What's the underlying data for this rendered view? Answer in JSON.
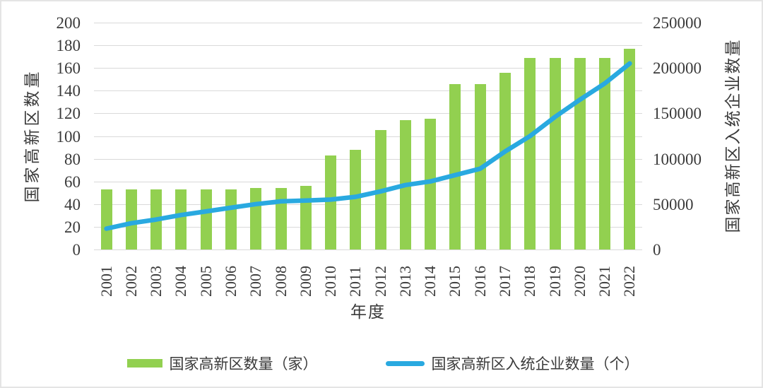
{
  "chart_data": {
    "type": "bar",
    "title": "",
    "categories": [
      "2001",
      "2002",
      "2003",
      "2004",
      "2005",
      "2006",
      "2007",
      "2008",
      "2009",
      "2010",
      "2011",
      "2012",
      "2013",
      "2014",
      "2015",
      "2016",
      "2017",
      "2018",
      "2019",
      "2020",
      "2021",
      "2022"
    ],
    "series": [
      {
        "name": "国家高新区数量（家）",
        "render": "bar",
        "axis": "left",
        "values": [
          53,
          53,
          53,
          53,
          53,
          53,
          54,
          54,
          56,
          83,
          88,
          105,
          114,
          115,
          146,
          146,
          156,
          169,
          169,
          169,
          169,
          177
        ]
      },
      {
        "name": "国家高新区入统企业数量（个）",
        "render": "line",
        "axis": "right",
        "values": [
          23000,
          29000,
          33000,
          38000,
          42000,
          46000,
          50000,
          53000,
          54000,
          55000,
          58000,
          64000,
          71000,
          75000,
          82000,
          89000,
          108000,
          125000,
          146000,
          165000,
          183000,
          205000
        ]
      }
    ],
    "xlabel": "年度",
    "ylabel_left": "国家高新区数量",
    "ylabel_right": "国家高新区入统企业数量",
    "ylim_left": [
      0,
      200
    ],
    "ytick_step_left": 20,
    "ylim_right": [
      0,
      250000
    ],
    "ytick_step_right": 50000,
    "grid": true,
    "legend_position": "bottom"
  },
  "colors": {
    "bar": "#92D050",
    "line": "#29A9E0",
    "grid": "#d9d9d9",
    "text": "#3a3a3a"
  }
}
